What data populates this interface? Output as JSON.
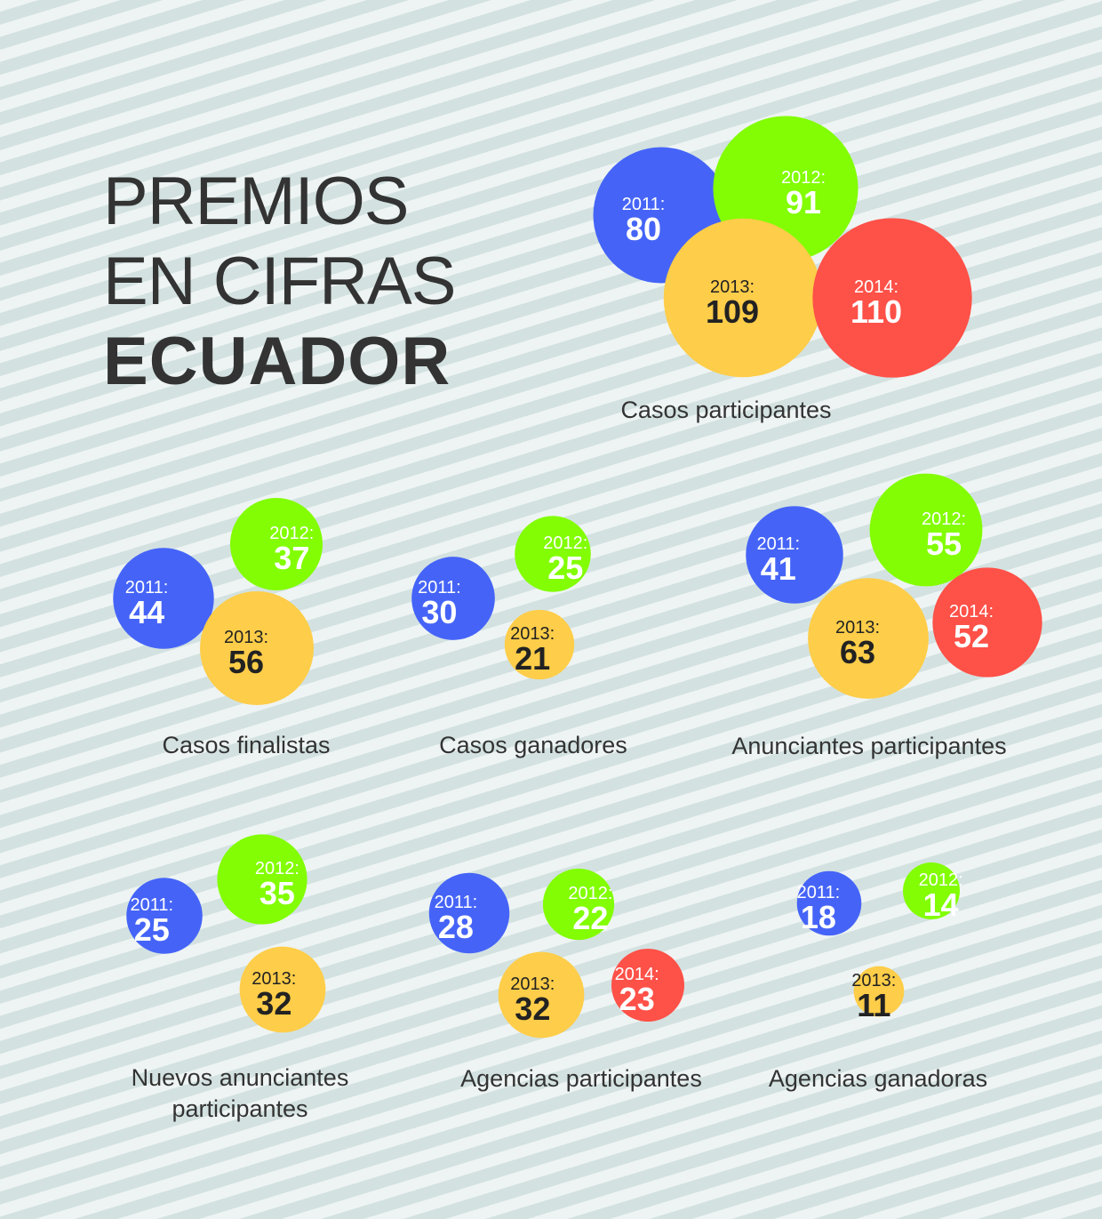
{
  "header": {
    "line1": "PREMIOS",
    "line2": "EN CIFRAS",
    "line3": "ECUADOR"
  },
  "colors": {
    "2011": "#4564f7",
    "2012": "#82fd03",
    "2013": "#fecd49",
    "2014": "#fe5148",
    "label_light": "#ffffff",
    "label_dark": "#222222"
  },
  "chart_data": [
    {
      "type": "bubble",
      "title": "Casos participantes",
      "series": [
        {
          "year": "2011",
          "label": "2011:",
          "value": 80
        },
        {
          "year": "2012",
          "label": "2012:",
          "value": 91
        },
        {
          "year": "2013",
          "label": "2013:",
          "value": 109
        },
        {
          "year": "2014",
          "label": "2014:",
          "value": 110
        }
      ]
    },
    {
      "type": "bubble",
      "title": "Casos finalistas",
      "series": [
        {
          "year": "2011",
          "label": "2011:",
          "value": 44
        },
        {
          "year": "2012",
          "label": "2012:",
          "value": 37
        },
        {
          "year": "2013",
          "label": "2013:",
          "value": 56
        }
      ]
    },
    {
      "type": "bubble",
      "title": "Casos ganadores",
      "series": [
        {
          "year": "2011",
          "label": "2011:",
          "value": 30
        },
        {
          "year": "2012",
          "label": "2012:",
          "value": 25
        },
        {
          "year": "2013",
          "label": "2013:",
          "value": 21
        }
      ]
    },
    {
      "type": "bubble",
      "title": "Anunciantes participantes",
      "series": [
        {
          "year": "2011",
          "label": "2011:",
          "value": 41
        },
        {
          "year": "2012",
          "label": "2012:",
          "value": 55
        },
        {
          "year": "2013",
          "label": "2013:",
          "value": 63
        },
        {
          "year": "2014",
          "label": "2014:",
          "value": 52
        }
      ]
    },
    {
      "type": "bubble",
      "title": "Nuevos anunciantes participantes",
      "title_lines": [
        "Nuevos anunciantes",
        "participantes"
      ],
      "series": [
        {
          "year": "2011",
          "label": "2011:",
          "value": 25
        },
        {
          "year": "2012",
          "label": "2012:",
          "value": 35
        },
        {
          "year": "2013",
          "label": "2013:",
          "value": 32
        }
      ]
    },
    {
      "type": "bubble",
      "title": "Agencias participantes",
      "series": [
        {
          "year": "2011",
          "label": "2011:",
          "value": 28
        },
        {
          "year": "2012",
          "label": "2012:",
          "value": 22
        },
        {
          "year": "2013",
          "label": "2013:",
          "value": 32
        },
        {
          "year": "2014",
          "label": "2014:",
          "value": 23
        }
      ]
    },
    {
      "type": "bubble",
      "title": "Agencias ganadoras",
      "series": [
        {
          "year": "2011",
          "label": "2011:",
          "value": 18
        },
        {
          "year": "2012",
          "label": "2012:",
          "value": 14
        },
        {
          "year": "2013",
          "label": "2013:",
          "value": 11
        }
      ]
    }
  ]
}
